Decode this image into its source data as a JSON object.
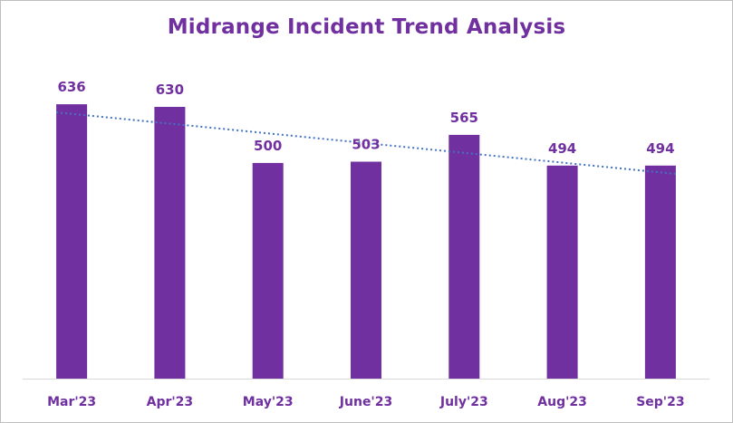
{
  "chart_data": {
    "type": "bar",
    "title": "Midrange Incident Trend Analysis",
    "xlabel": "",
    "ylabel": "",
    "categories": [
      "Mar'23",
      "Apr'23",
      "May'23",
      "June'23",
      "July'23",
      "Aug'23",
      "Sep'23"
    ],
    "values": [
      636,
      630,
      500,
      503,
      565,
      494,
      494
    ],
    "ylim": [
      0,
      700
    ],
    "grid": false,
    "legend": "none",
    "data_labels": true,
    "trendline": "linear",
    "colors": {
      "bar": "#7030a0",
      "label": "#7030a0",
      "trendline": "#4472c4",
      "axis": "#d9d9d9"
    }
  }
}
